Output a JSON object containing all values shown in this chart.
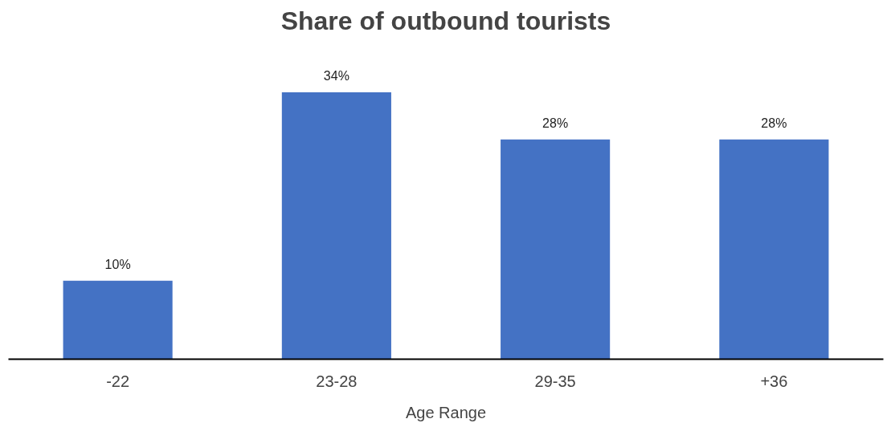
{
  "chart_data": {
    "type": "bar",
    "title": "Share of outbound tourists",
    "xlabel": "Age Range",
    "categories": [
      "-22",
      "23-28",
      "29-35",
      "+36"
    ],
    "values": [
      10,
      34,
      28,
      28
    ],
    "value_labels": [
      "10%",
      "34%",
      "28%",
      "28%"
    ],
    "color": "#4472c4",
    "grid": false
  }
}
